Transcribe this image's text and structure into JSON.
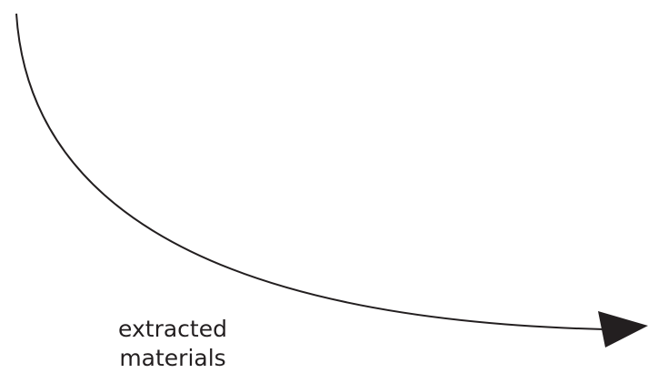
{
  "diagram": {
    "label_line1": "extracted",
    "label_line2": "materials",
    "stroke_color": "#231f20",
    "label_color": "#231f20"
  }
}
